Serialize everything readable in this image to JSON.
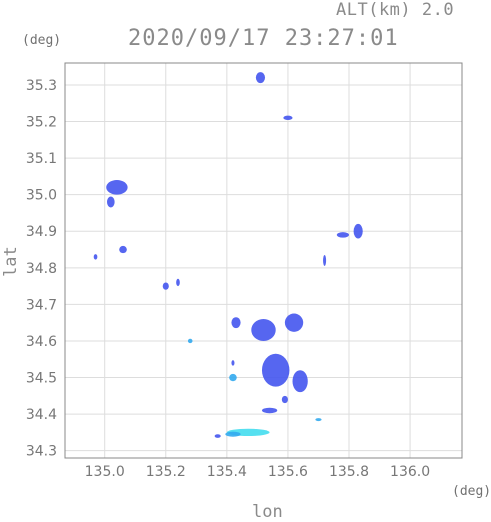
{
  "header": {
    "altitude_label": "ALT(km) 2.0",
    "timestamp": "2020/09/17 23:27:01"
  },
  "axes": {
    "lat_unit": "(deg)",
    "lon_unit": "(deg)",
    "x_title": "lon",
    "y_title": "lat"
  },
  "chart_data": {
    "type": "map",
    "xlabel": "lon",
    "ylabel": "lat",
    "xlim": [
      134.87,
      136.17
    ],
    "ylim": [
      34.28,
      35.36
    ],
    "xticks": [
      "135.0",
      "135.2",
      "135.4",
      "135.6",
      "135.8",
      "136.0"
    ],
    "xtick_values": [
      135.0,
      135.2,
      135.4,
      135.6,
      135.8,
      136.0
    ],
    "yticks": [
      "34.3",
      "34.4",
      "34.5",
      "34.6",
      "34.7",
      "34.8",
      "34.9",
      "35.0",
      "35.1",
      "35.2",
      "35.3"
    ],
    "ytick_values": [
      34.3,
      34.4,
      34.5,
      34.6,
      34.7,
      34.8,
      34.9,
      35.0,
      35.1,
      35.2,
      35.3
    ],
    "grid": true,
    "colors": {
      "echo_blue": "#4455ee",
      "echo_light": "#33aaee",
      "echo_cyan": "#44ddee"
    },
    "echoes": [
      {
        "lon": 135.51,
        "lat": 35.32,
        "w": 0.03,
        "h": 0.03,
        "color": "echo_blue"
      },
      {
        "lon": 135.6,
        "lat": 35.21,
        "w": 0.03,
        "h": 0.012,
        "color": "echo_blue"
      },
      {
        "lon": 135.04,
        "lat": 35.02,
        "w": 0.07,
        "h": 0.04,
        "color": "echo_blue"
      },
      {
        "lon": 135.02,
        "lat": 34.98,
        "w": 0.025,
        "h": 0.03,
        "color": "echo_blue"
      },
      {
        "lon": 135.06,
        "lat": 34.85,
        "w": 0.025,
        "h": 0.02,
        "color": "echo_blue"
      },
      {
        "lon": 134.97,
        "lat": 34.83,
        "w": 0.012,
        "h": 0.015,
        "color": "echo_blue"
      },
      {
        "lon": 135.2,
        "lat": 34.75,
        "w": 0.02,
        "h": 0.02,
        "color": "echo_blue"
      },
      {
        "lon": 135.24,
        "lat": 34.76,
        "w": 0.012,
        "h": 0.02,
        "color": "echo_blue"
      },
      {
        "lon": 135.28,
        "lat": 34.6,
        "w": 0.015,
        "h": 0.012,
        "color": "echo_light"
      },
      {
        "lon": 135.83,
        "lat": 34.9,
        "w": 0.03,
        "h": 0.04,
        "color": "echo_blue"
      },
      {
        "lon": 135.78,
        "lat": 34.89,
        "w": 0.04,
        "h": 0.015,
        "color": "echo_blue"
      },
      {
        "lon": 135.72,
        "lat": 34.82,
        "w": 0.01,
        "h": 0.03,
        "color": "echo_blue"
      },
      {
        "lon": 135.52,
        "lat": 34.63,
        "w": 0.08,
        "h": 0.06,
        "color": "echo_blue"
      },
      {
        "lon": 135.62,
        "lat": 34.65,
        "w": 0.06,
        "h": 0.05,
        "color": "echo_blue"
      },
      {
        "lon": 135.43,
        "lat": 34.65,
        "w": 0.03,
        "h": 0.03,
        "color": "echo_blue"
      },
      {
        "lon": 135.56,
        "lat": 34.52,
        "w": 0.09,
        "h": 0.09,
        "color": "echo_blue"
      },
      {
        "lon": 135.64,
        "lat": 34.49,
        "w": 0.05,
        "h": 0.06,
        "color": "echo_blue"
      },
      {
        "lon": 135.42,
        "lat": 34.5,
        "w": 0.025,
        "h": 0.02,
        "color": "echo_light"
      },
      {
        "lon": 135.42,
        "lat": 34.54,
        "w": 0.01,
        "h": 0.015,
        "color": "echo_blue"
      },
      {
        "lon": 135.54,
        "lat": 34.41,
        "w": 0.05,
        "h": 0.015,
        "color": "echo_blue"
      },
      {
        "lon": 135.59,
        "lat": 34.44,
        "w": 0.02,
        "h": 0.02,
        "color": "echo_blue"
      },
      {
        "lon": 135.47,
        "lat": 34.35,
        "w": 0.14,
        "h": 0.02,
        "color": "echo_cyan"
      },
      {
        "lon": 135.42,
        "lat": 34.345,
        "w": 0.05,
        "h": 0.014,
        "color": "echo_light"
      },
      {
        "lon": 135.37,
        "lat": 34.34,
        "w": 0.02,
        "h": 0.01,
        "color": "echo_blue"
      },
      {
        "lon": 135.7,
        "lat": 34.385,
        "w": 0.02,
        "h": 0.008,
        "color": "echo_light"
      }
    ]
  }
}
